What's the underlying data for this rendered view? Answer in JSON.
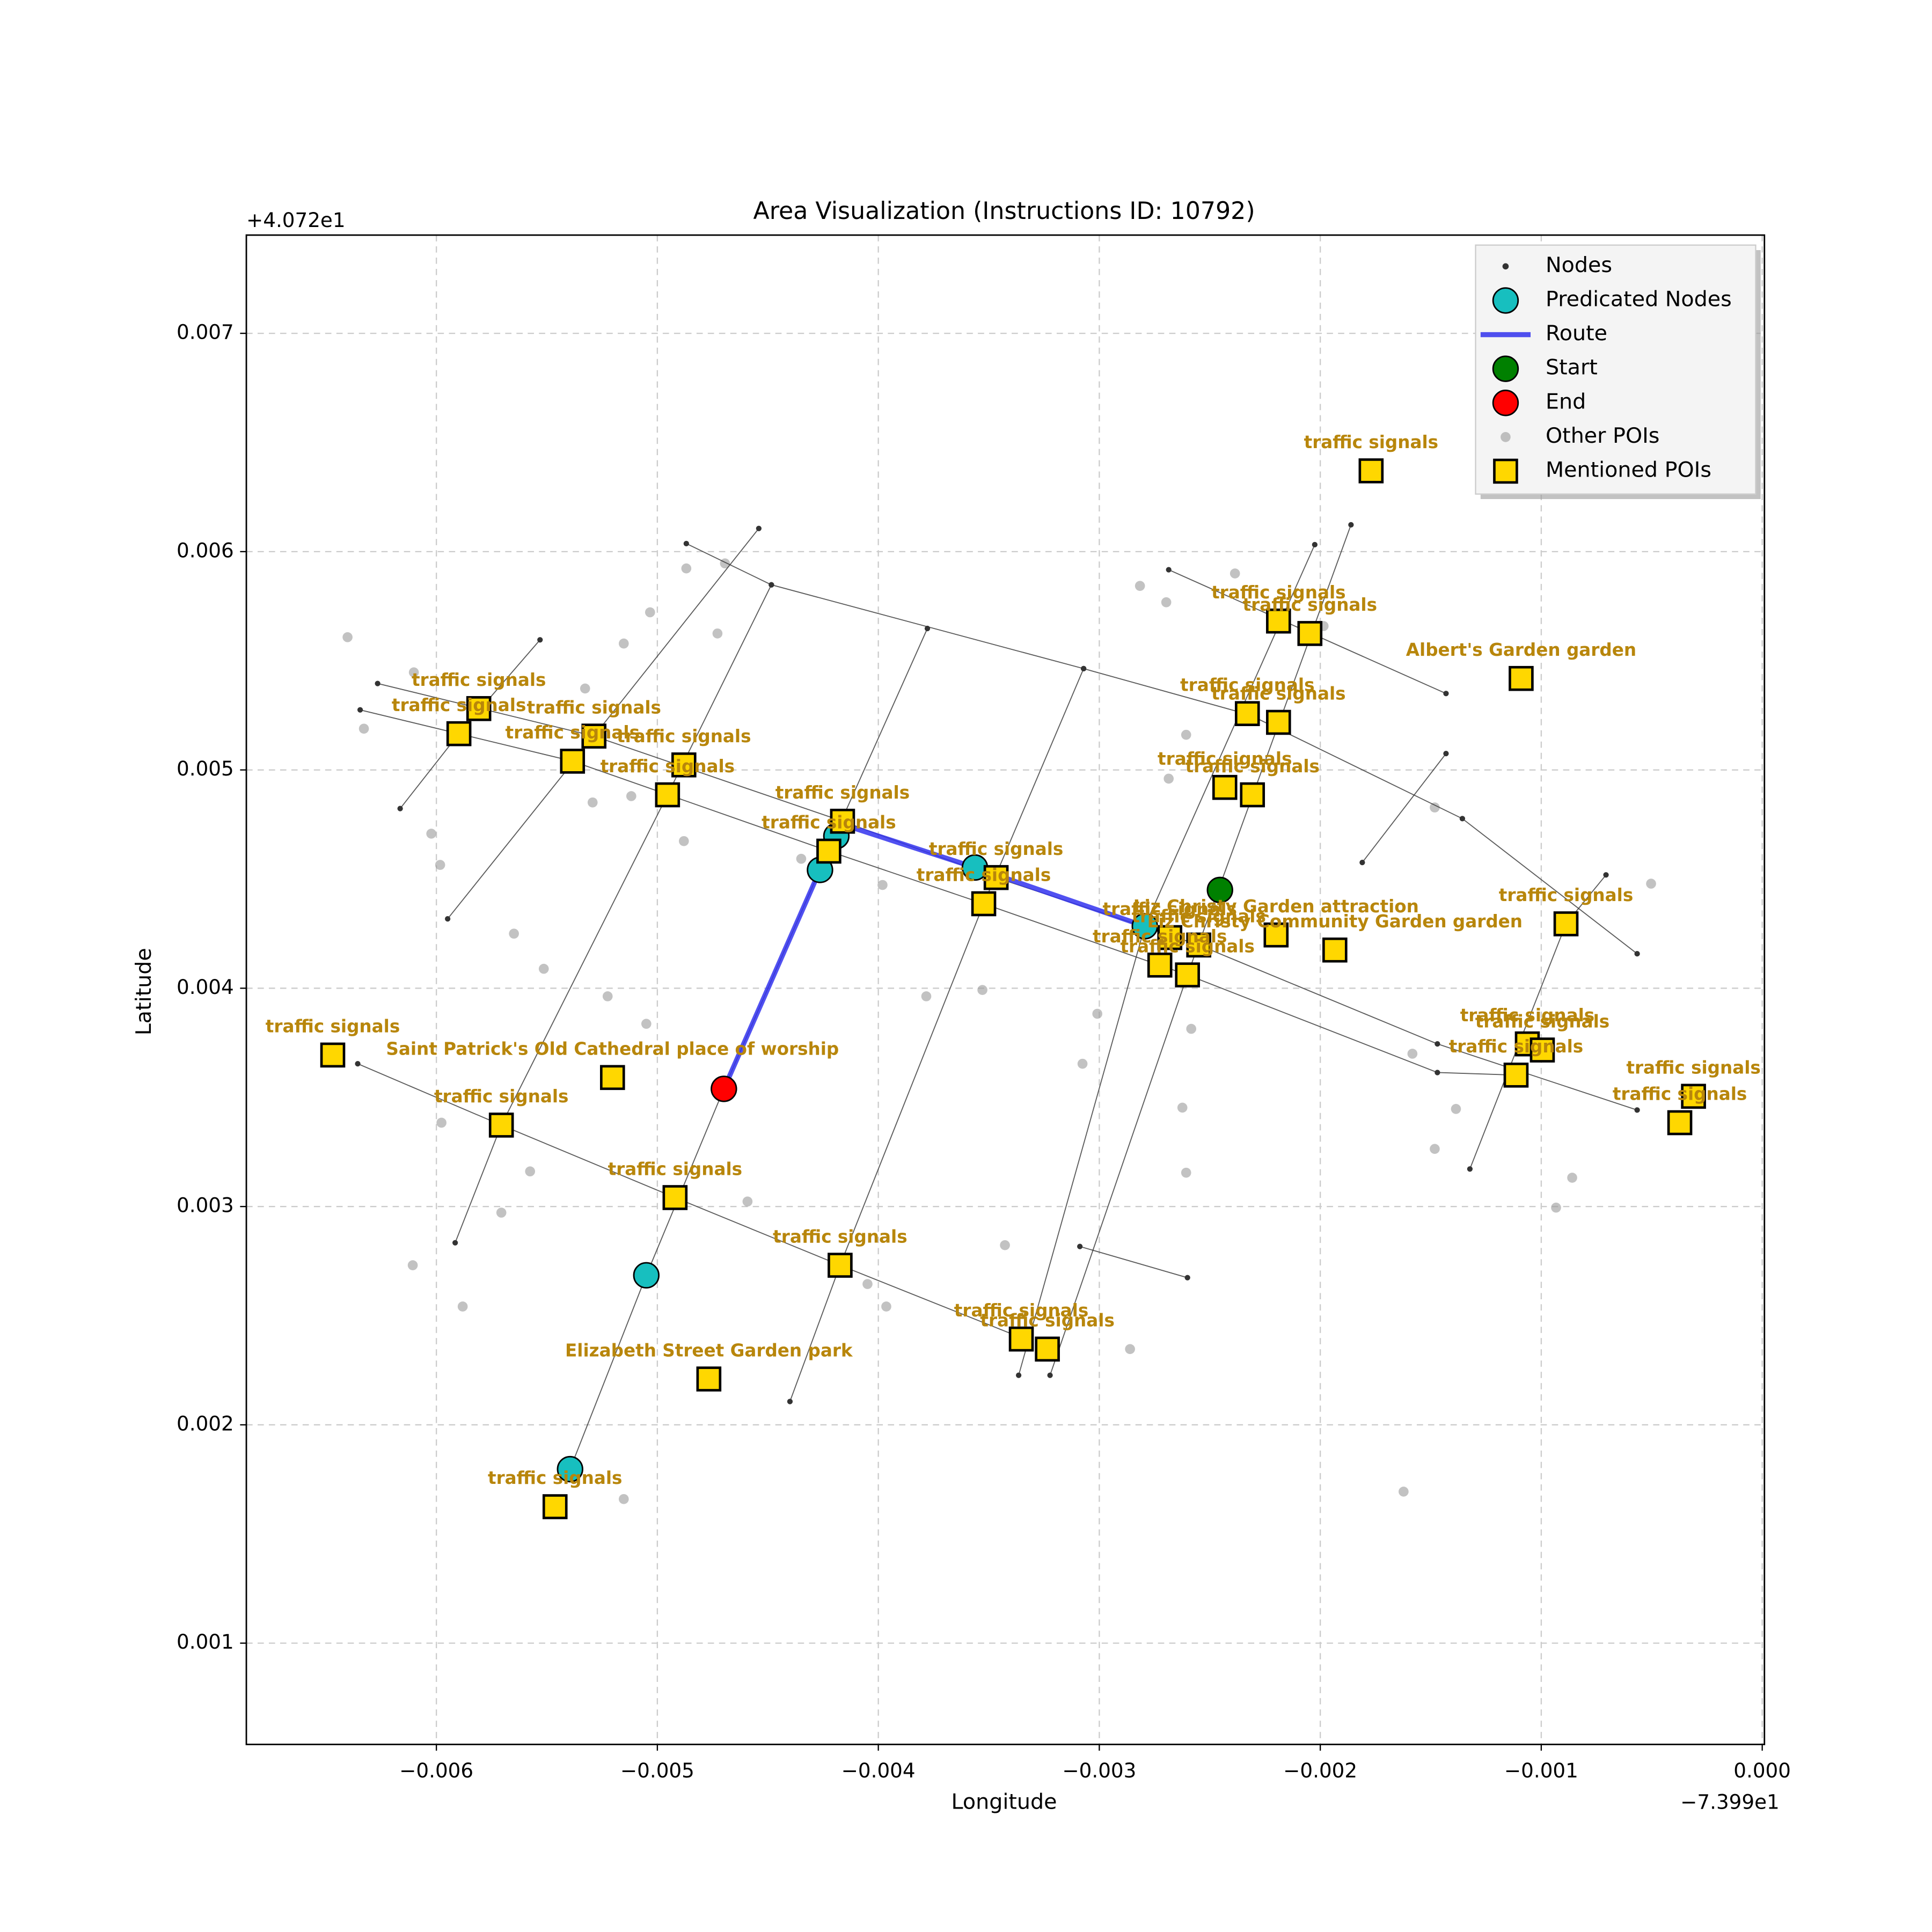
{
  "chart_data": {
    "type": "scatter",
    "title": "Area Visualization (Instructions ID: 10792)",
    "xlabel": "Longitude",
    "ylabel": "Latitude",
    "x_offset_label": "−7.399e1",
    "y_offset_label": "+4.072e1",
    "xlim": [
      -0.00686,
      1e-05
    ],
    "ylim": [
      0.000536,
      0.00745
    ],
    "xticks": [
      {
        "value": -0.006,
        "label": "−0.006"
      },
      {
        "value": -0.005,
        "label": "−0.005"
      },
      {
        "value": -0.004,
        "label": "−0.004"
      },
      {
        "value": -0.003,
        "label": "−0.003"
      },
      {
        "value": -0.002,
        "label": "−0.002"
      },
      {
        "value": -0.001,
        "label": "−0.001"
      },
      {
        "value": 0,
        "label": "0.000"
      }
    ],
    "yticks": [
      0.001,
      0.002,
      0.003,
      0.004,
      0.005,
      0.006,
      0.007
    ],
    "grid": true,
    "legend": "upper right",
    "series": [
      {
        "name": "Nodes",
        "marker": "network",
        "color": "#333333",
        "paths": [
          {
            "x": [
              -0.004869,
              -0.004484,
              -0.003071,
              -0.002319,
              -0.001357,
              -0.000566
            ],
            "y": [
              0.006037,
              0.005848,
              0.005464,
              0.005252,
              0.004777,
              0.004158
            ]
          },
          {
            "x": [
              -0.002686,
              -0.001431
            ],
            "y": [
              0.005917,
              0.00535
            ]
          },
          {
            "x": [
              -0.006266,
              -0.005287,
              -0.004162,
              -0.003467,
              -0.00255,
              -0.00147,
              -0.000566
            ],
            "y": [
              0.005396,
              0.005155,
              0.004765,
              0.004507,
              0.004198,
              0.003745,
              0.003442
            ]
          },
          {
            "x": [
              -0.006345,
              -0.005384,
              -0.004224,
              -0.003523,
              -0.002601,
              -0.00147,
              -0.001114
            ],
            "y": [
              0.005275,
              0.00504,
              0.004628,
              0.004387,
              0.004061,
              0.003614,
              0.003602
            ]
          },
          {
            "x": [
              -0.006356,
              -0.005706,
              -0.00492,
              -0.004173,
              -0.003353
            ],
            "y": [
              0.003654,
              0.003373,
              0.003041,
              0.002731,
              0.002399
            ]
          },
          {
            "x": [
              -0.003088,
              -0.002601
            ],
            "y": [
              0.002817,
              0.002674
            ]
          },
          {
            "x": [
              -0.005531,
              -0.005898,
              -0.006164
            ],
            "y": [
              0.005596,
              0.005166,
              0.004823
            ]
          },
          {
            "x": [
              -0.004541,
              -0.005287,
              -0.005949
            ],
            "y": [
              0.006106,
              0.005155,
              0.004318
            ]
          },
          {
            "x": [
              -0.004484,
              -0.004954,
              -0.005706,
              -0.005915
            ],
            "y": [
              0.005848,
              0.004886,
              0.003373,
              0.002834
            ]
          },
          {
            "x": [
              -0.0044,
              -0.004173,
              -0.003523,
              -0.003071
            ],
            "y": [
              0.002107,
              0.002731,
              0.004387,
              0.005464
            ]
          },
          {
            "x": [
              -0.003778,
              -0.004173,
              -0.004699,
              -0.00505,
              -0.005395
            ],
            "y": [
              0.005648,
              0.004754,
              0.003539,
              0.002685,
              0.001797
            ]
          },
          {
            "x": [
              -0.003365,
              -0.002794,
              -0.002025
            ],
            "y": [
              0.002227,
              0.004284,
              0.006032
            ]
          },
          {
            "x": [
              -0.003223,
              -0.002601,
              -0.001861
            ],
            "y": [
              0.002227,
              0.004061,
              0.006123
            ]
          },
          {
            "x": [
              -0.001323,
              -0.000888,
              -0.000707
            ],
            "y": [
              0.003172,
              0.004295,
              0.004519
            ]
          },
          {
            "x": [
              -0.00181,
              -0.001431
            ],
            "y": [
              0.004576,
              0.005075
            ]
          }
        ]
      },
      {
        "name": "Predicated Nodes",
        "marker": "circle",
        "color": "#17bfbf",
        "x": [
          -0.004264,
          -0.00419,
          -0.003563,
          -0.002794,
          -0.00505,
          -0.005395
        ],
        "y": [
          0.004542,
          0.004697,
          0.004553,
          0.004284,
          0.002685,
          0.001797
        ]
      },
      {
        "name": "Route",
        "marker": "line",
        "color": "#3333ee",
        "x": [
          -0.004699,
          -0.004264,
          -0.004173,
          -0.003563,
          -0.002794
        ],
        "y": [
          0.003539,
          0.004542,
          0.004754,
          0.004553,
          0.004284
        ]
      },
      {
        "name": "Start",
        "marker": "circle",
        "color": "#008000",
        "x": [
          -0.002454
        ],
        "y": [
          0.00445
        ]
      },
      {
        "name": "End",
        "marker": "circle",
        "color": "#ff0000",
        "x": [
          -0.004699
        ],
        "y": [
          0.003539
        ]
      },
      {
        "name": "Other POIs",
        "marker": "dot",
        "color": "#999999",
        "x": [
          -0.006402,
          -0.006328,
          -0.006102,
          -0.006023,
          -0.005983,
          -0.005977,
          -0.006107,
          -0.005881,
          -0.005706,
          -0.005576,
          -0.005649,
          -0.005514,
          -0.005225,
          -0.00505,
          -0.004869,
          -0.004694,
          -0.004728,
          -0.005033,
          -0.005152,
          -0.005327,
          -0.005293,
          -0.005118,
          -0.00488,
          -0.004349,
          -0.004049,
          -0.003964,
          -0.003981,
          -0.003783,
          -0.003529,
          -0.003427,
          -0.003076,
          -0.003009,
          -0.002816,
          -0.002697,
          -0.002607,
          -0.002686,
          -0.002386,
          -0.001985,
          -0.002584,
          -0.002607,
          -0.002624,
          -0.001623,
          -0.001482,
          -0.001583,
          -0.001386,
          -0.001482,
          -0.000933,
          -0.00086,
          -0.000503,
          -0.004592,
          -0.005152,
          -0.002861
        ],
        "y": [
          0.005608,
          0.005189,
          0.005447,
          0.004708,
          0.004565,
          0.003384,
          0.002731,
          0.002542,
          0.002972,
          0.003161,
          0.00425,
          0.004089,
          0.003963,
          0.003837,
          0.005923,
          0.005946,
          0.005625,
          0.005722,
          0.005579,
          0.005373,
          0.004851,
          0.00488,
          0.004674,
          0.004593,
          0.002645,
          0.002542,
          0.004473,
          0.003963,
          0.003992,
          0.002823,
          0.003654,
          0.003883,
          0.005843,
          0.005768,
          0.005161,
          0.00496,
          0.0059,
          0.005659,
          0.003814,
          0.003155,
          0.003453,
          0.001694,
          0.004828,
          0.0037,
          0.003447,
          0.003264,
          0.002995,
          0.003132,
          0.004479,
          0.003023,
          0.00166,
          0.002347
        ]
      },
      {
        "name": "Mentioned POIs",
        "marker": "square",
        "color": "#ffd700",
        "x": [
          -0.00177,
          -0.002189,
          -0.002047,
          -0.001091,
          -0.00233,
          -0.002189,
          -0.002432,
          -0.002307,
          -0.005808,
          -0.005898,
          -0.005287,
          -0.005384,
          -0.00488,
          -0.004954,
          -0.004162,
          -0.004224,
          -0.003467,
          -0.003523,
          -0.002681,
          -0.00255,
          -0.0022,
          -0.001934,
          -0.002726,
          -0.002601,
          -0.000888,
          -0.001063,
          -0.000995,
          -0.001114,
          -0.000311,
          -0.000373,
          -0.006469,
          -0.005203,
          -0.005706,
          -0.00492,
          -0.004173,
          -0.003353,
          -0.003235,
          -0.004767,
          -0.005463
        ],
        "y": [
          0.00637,
          0.005682,
          0.005625,
          0.005419,
          0.005258,
          0.005218,
          0.00492,
          0.004886,
          0.005281,
          0.005166,
          0.005155,
          0.00504,
          0.005023,
          0.004886,
          0.004765,
          0.004628,
          0.004507,
          0.004387,
          0.004232,
          0.004198,
          0.004244,
          0.004175,
          0.004106,
          0.004061,
          0.004295,
          0.003745,
          0.003717,
          0.003602,
          0.003505,
          0.003384,
          0.003694,
          0.003591,
          0.003373,
          0.003041,
          0.002731,
          0.002393,
          0.002347,
          0.00221,
          0.001625
        ],
        "labels": [
          "traffic signals",
          "traffic signals",
          "traffic signals",
          "Albert's Garden   garden",
          "traffic signals",
          "traffic signals",
          "traffic signals",
          "traffic signals",
          "traffic signals",
          "traffic signals",
          "traffic signals",
          "traffic signals",
          "traffic signals",
          "traffic signals",
          "traffic signals",
          "traffic signals",
          "traffic signals",
          "traffic signals",
          "traffic signals",
          "traffic signals",
          "Liz Christy Garden   attraction",
          "Liz Christy Community Garden   garden",
          "traffic signals",
          "traffic signals",
          "traffic signals",
          "traffic signals",
          "traffic signals",
          "traffic signals",
          "traffic signals",
          "traffic signals",
          "traffic signals",
          "Saint Patrick's Old Cathedral place of worship",
          "traffic signals",
          "traffic signals",
          "traffic signals",
          "traffic signals",
          "traffic signals",
          "Elizabeth Street Garden   park",
          "traffic signals"
        ]
      }
    ]
  }
}
